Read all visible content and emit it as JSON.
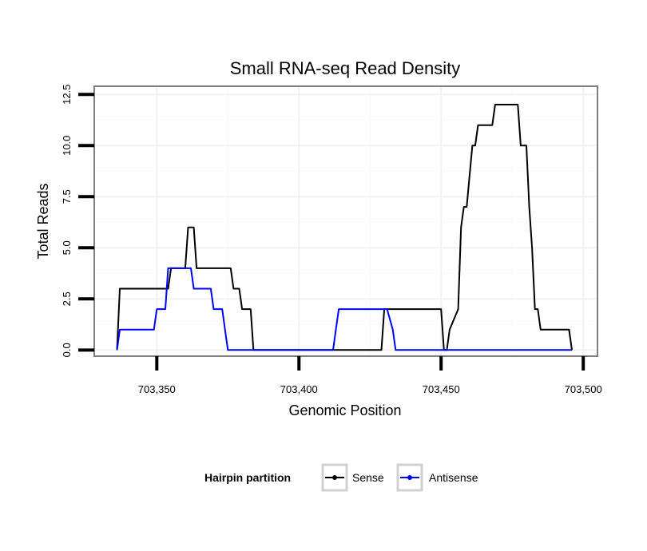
{
  "chart_data": {
    "type": "line",
    "title": "Small RNA-seq Read Density",
    "xlabel": "Genomic Position",
    "ylabel": "Total Reads",
    "xlim": [
      703328,
      703505
    ],
    "ylim": [
      -0.3,
      12.9
    ],
    "x_ticks": [
      {
        "value": 703350,
        "label": "703,350"
      },
      {
        "value": 703400,
        "label": "703,400"
      },
      {
        "value": 703450,
        "label": "703,450"
      },
      {
        "value": 703500,
        "label": "703,500"
      }
    ],
    "y_ticks": [
      {
        "value": 0,
        "label": "0.0"
      },
      {
        "value": 2.5,
        "label": "2.5"
      },
      {
        "value": 5,
        "label": "5.0"
      },
      {
        "value": 7.5,
        "label": "7.5"
      },
      {
        "value": 10,
        "label": "10.0"
      },
      {
        "value": 12.5,
        "label": "12.5"
      }
    ],
    "grid": true,
    "legend": {
      "title": "Hairpin partition",
      "position": "bottom"
    },
    "series": [
      {
        "name": "Sense",
        "color": "#000000",
        "x": [
          703336,
          703337,
          703338,
          703354,
          703355,
          703360,
          703361,
          703363,
          703364,
          703376,
          703377,
          703379,
          703380,
          703383,
          703384,
          703387,
          703388,
          703429,
          703430,
          703450,
          703451,
          703452,
          703453,
          703456,
          703457,
          703458,
          703459,
          703460,
          703461,
          703462,
          703463,
          703464,
          703465,
          703468,
          703469,
          703470,
          703477,
          703478,
          703480,
          703481,
          703482,
          703483,
          703484,
          703485,
          703486,
          703494,
          703495,
          703496
        ],
        "values": [
          0,
          3,
          3,
          3,
          4,
          4,
          6,
          6,
          4,
          4,
          3,
          3,
          2,
          2,
          0,
          0,
          0,
          0,
          2,
          2,
          0,
          0,
          1,
          2,
          6,
          7,
          7,
          8.5,
          10,
          10,
          11,
          11,
          11,
          11,
          12,
          12,
          12,
          10,
          10,
          7,
          5,
          2,
          2,
          1,
          1,
          1,
          1,
          0
        ]
      },
      {
        "name": "Antisense",
        "color": "#0000ff",
        "x": [
          703336,
          703337,
          703349,
          703350,
          703353,
          703354,
          703362,
          703363,
          703369,
          703370,
          703373,
          703374,
          703375,
          703377,
          703378,
          703412,
          703413,
          703414,
          703425,
          703426,
          703431,
          703433,
          703434,
          703496
        ],
        "values": [
          0,
          1,
          1,
          2,
          2,
          4,
          4,
          3,
          3,
          2,
          2,
          1,
          0,
          0,
          0,
          0,
          1,
          2,
          2,
          2,
          2,
          1,
          0,
          0
        ]
      }
    ]
  }
}
